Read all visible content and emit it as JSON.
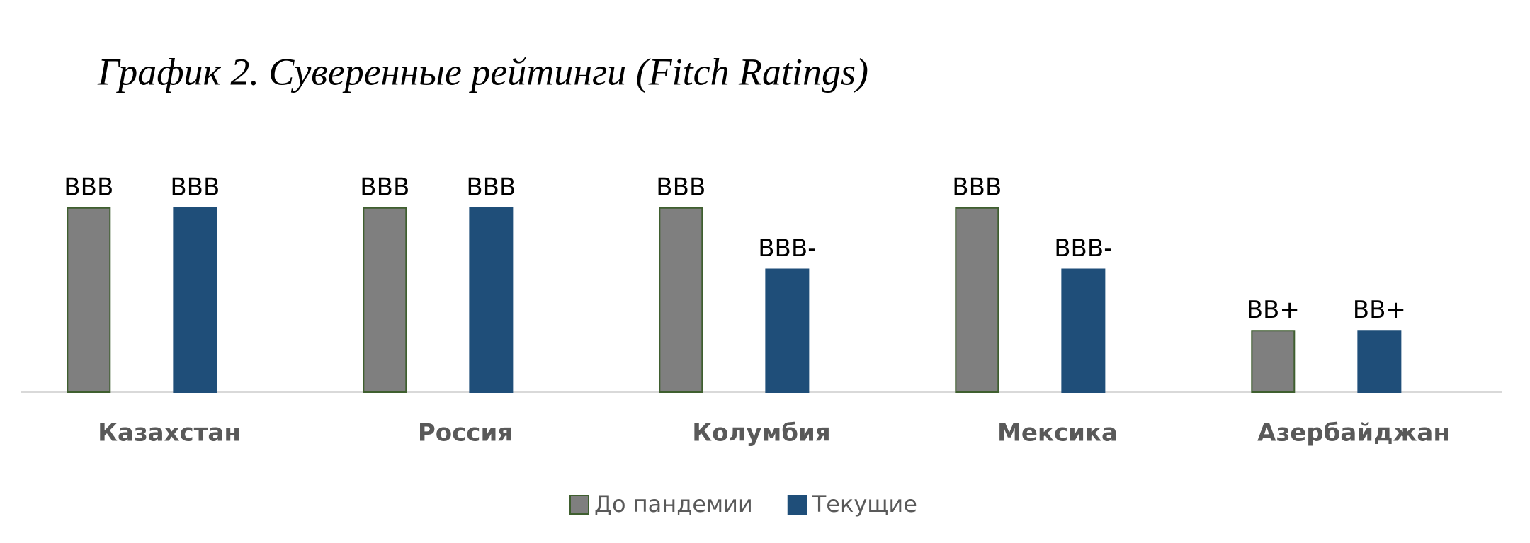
{
  "chart_data": {
    "type": "bar",
    "title": "График 2. Суверенные рейтинги (Fitch Ratings)",
    "categories": [
      "Казахстан",
      "Россия",
      "Колумбия",
      "Мексика",
      "Азербайджан"
    ],
    "series": [
      {
        "name": "До пандемии",
        "color": "#7f7f7f",
        "values": [
          3,
          3,
          3,
          3,
          1
        ],
        "value_labels": [
          "BBB",
          "BBB",
          "BBB",
          "BBB",
          "BB+"
        ]
      },
      {
        "name": "Текущие",
        "color": "#1f4e79",
        "values": [
          3,
          3,
          2,
          2,
          1
        ],
        "value_labels": [
          "BBB",
          "BBB",
          "BBB-",
          "BBB-",
          "BB+"
        ]
      }
    ],
    "ylim": [
      0,
      4
    ]
  }
}
